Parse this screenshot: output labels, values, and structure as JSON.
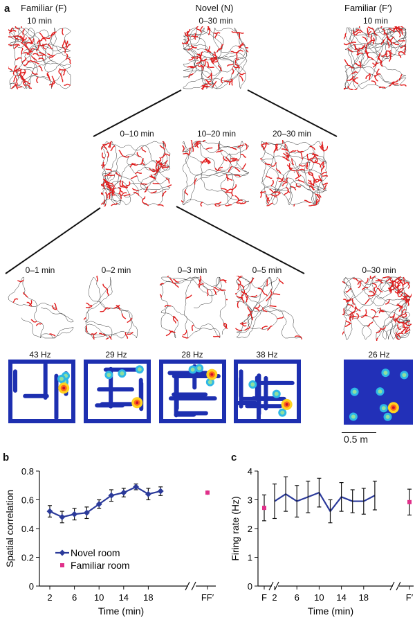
{
  "panel_a": {
    "letter": "a",
    "headers": {
      "familiar_f": "Familiar (F)",
      "novel": "Novel (N)",
      "familiar_fp": "Familiar (F′)"
    },
    "time_labels": {
      "top_left": "10 min",
      "top_mid": "0–30 min",
      "top_right": "10 min",
      "mid_1": "0–10 min",
      "mid_2": "10–20 min",
      "mid_3": "20–30 min",
      "low_1": "0–1 min",
      "low_2": "0–2 min",
      "low_3": "0–3 min",
      "low_4": "0–5 min",
      "low_right": "0–30 min"
    },
    "rate_labels": {
      "h1": "43 Hz",
      "h2": "29 Hz",
      "h3": "28 Hz",
      "h4": "38 Hz",
      "h5": "26 Hz"
    },
    "scale_bar": "0.5 m"
  },
  "panel_b": {
    "letter": "b"
  },
  "panel_c": {
    "letter": "c"
  },
  "chart_data": [
    {
      "type": "line",
      "ylabel": "Spatial correlation",
      "xlabel": "Time (min)",
      "ylim": [
        0,
        0.8
      ],
      "yticks": [
        "0",
        "0.2",
        "0.4",
        "0.6",
        "0.8"
      ],
      "xtick_labels": [
        "2",
        "6",
        "10",
        "14",
        "18",
        "FF′"
      ],
      "legend": [
        "Novel room",
        "Familiar room"
      ],
      "series": [
        {
          "name": "Novel room",
          "x": [
            2,
            4,
            6,
            8,
            10,
            12,
            14,
            16,
            18,
            20
          ],
          "y": [
            0.52,
            0.48,
            0.5,
            0.51,
            0.57,
            0.63,
            0.65,
            0.69,
            0.64,
            0.66
          ],
          "err": [
            0.04,
            0.04,
            0.04,
            0.04,
            0.03,
            0.04,
            0.03,
            0.02,
            0.04,
            0.03
          ]
        },
        {
          "name": "Familiar room",
          "x": [
            "FF′"
          ],
          "y": [
            0.65
          ],
          "err": [
            0.015
          ]
        }
      ],
      "colors": {
        "novel": "#2b3a9a",
        "familiar": "#e0308a"
      }
    },
    {
      "type": "line",
      "ylabel": "Firing rate (Hz)",
      "xlabel": "Time (min)",
      "ylim": [
        0,
        4
      ],
      "yticks": [
        "0",
        "1",
        "2",
        "3",
        "4"
      ],
      "xtick_labels": [
        "F",
        "2",
        "6",
        "10",
        "14",
        "18",
        "F′"
      ],
      "series": [
        {
          "name": "Novel room",
          "x": [
            2,
            4,
            6,
            8,
            10,
            12,
            14,
            16,
            18,
            20
          ],
          "y": [
            2.95,
            3.2,
            2.95,
            3.1,
            3.25,
            2.6,
            3.1,
            2.95,
            2.95,
            3.15
          ],
          "err": [
            0.6,
            0.6,
            0.55,
            0.55,
            0.5,
            0.4,
            0.5,
            0.4,
            0.45,
            0.5
          ]
        },
        {
          "name": "Familiar room",
          "x": [
            "F",
            "F′"
          ],
          "y": [
            2.72,
            2.92
          ],
          "err": [
            0.45,
            0.45
          ]
        }
      ],
      "colors": {
        "novel": "#2b3a9a",
        "familiar": "#e0308a"
      }
    }
  ]
}
